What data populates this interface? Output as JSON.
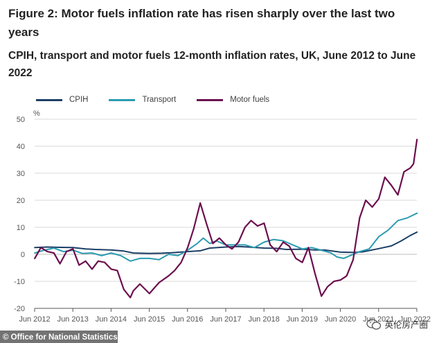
{
  "title": "Figure 2: Motor fuels inflation rate has risen sharply over the last two years",
  "subtitle": "CPIH, transport and motor fuels 12-month inflation rates, UK, June 2012 to June 2022",
  "source": "© Office for National Statistics",
  "watermark": "英伦房产圈",
  "colors": {
    "cpih": "#1c3f66",
    "transport": "#2b9bb1",
    "motor_fuels": "#6b0f4e",
    "grid": "#d9d9d9",
    "axis": "#555555"
  },
  "chart_data": {
    "type": "line",
    "title": "CPIH, transport and motor fuels 12-month inflation rates, UK, June 2012 to June 2022",
    "ylabel": "%",
    "xlabel": "",
    "ylim": [
      -20,
      50
    ],
    "yticks": [
      "50",
      "40",
      "30",
      "20",
      "10",
      "0",
      "-10",
      "-20"
    ],
    "ytick_values": [
      50,
      40,
      30,
      20,
      10,
      0,
      -10,
      -20
    ],
    "xlim": [
      2012.4167,
      2022.4167
    ],
    "xticks": [
      {
        "label": "Jun 2012",
        "x": 2012.4167
      },
      {
        "label": "Jun 2013",
        "x": 2013.4167
      },
      {
        "label": "Jun 2014",
        "x": 2014.4167
      },
      {
        "label": "Jun 2015",
        "x": 2015.4167
      },
      {
        "label": "Jun 2016",
        "x": 2016.4167
      },
      {
        "label": "Jun 2017",
        "x": 2017.4167
      },
      {
        "label": "Jun 2018",
        "x": 2018.4167
      },
      {
        "label": "Jun 2019",
        "x": 2019.4167
      },
      {
        "label": "Jun 2020",
        "x": 2020.4167
      },
      {
        "label": "Jun 2021",
        "x": 2021.4167
      },
      {
        "label": "Jun 2022",
        "x": 2022.4167
      }
    ],
    "legend": [
      "CPIH",
      "Transport",
      "Motor fuels"
    ],
    "grid": true,
    "series": [
      {
        "name": "CPIH",
        "key": "cpih",
        "x": [
          2012.42,
          2012.75,
          2013.0,
          2013.42,
          2013.75,
          2014.0,
          2014.42,
          2014.75,
          2015.0,
          2015.42,
          2015.75,
          2016.0,
          2016.42,
          2016.75,
          2017.0,
          2017.42,
          2017.75,
          2018.0,
          2018.42,
          2018.75,
          2019.0,
          2019.42,
          2019.75,
          2020.0,
          2020.42,
          2020.75,
          2021.0,
          2021.42,
          2021.75,
          2022.0,
          2022.25,
          2022.42
        ],
        "y": [
          2.5,
          2.7,
          2.6,
          2.5,
          2.0,
          1.8,
          1.6,
          1.2,
          0.5,
          0.3,
          0.4,
          0.6,
          1.0,
          1.3,
          2.3,
          2.7,
          2.9,
          2.7,
          2.3,
          2.2,
          1.8,
          1.9,
          1.6,
          1.6,
          0.8,
          0.7,
          0.9,
          2.1,
          3.1,
          4.9,
          7.0,
          8.2
        ]
      },
      {
        "name": "Transport",
        "key": "transport",
        "x": [
          2012.42,
          2012.67,
          2012.92,
          2013.17,
          2013.42,
          2013.67,
          2013.92,
          2014.17,
          2014.42,
          2014.67,
          2014.92,
          2015.17,
          2015.42,
          2015.67,
          2015.92,
          2016.17,
          2016.42,
          2016.67,
          2016.83,
          2017.0,
          2017.17,
          2017.42,
          2017.67,
          2017.92,
          2018.17,
          2018.42,
          2018.67,
          2018.92,
          2019.17,
          2019.42,
          2019.67,
          2019.92,
          2020.17,
          2020.33,
          2020.5,
          2020.67,
          2020.92,
          2021.17,
          2021.42,
          2021.67,
          2021.92,
          2022.17,
          2022.42
        ],
        "y": [
          0.5,
          1.5,
          2.3,
          1.0,
          1.5,
          0.3,
          0.5,
          -0.5,
          0.5,
          -0.5,
          -2.5,
          -1.5,
          -1.5,
          -2.0,
          0.0,
          -0.5,
          1.5,
          4.0,
          6.0,
          4.0,
          5.0,
          3.5,
          3.5,
          3.5,
          2.5,
          4.5,
          5.5,
          5.0,
          3.5,
          2.0,
          2.5,
          1.5,
          0.5,
          -1.0,
          -1.5,
          -0.5,
          1.0,
          2.0,
          6.5,
          9.0,
          12.5,
          13.5,
          15.2
        ]
      },
      {
        "name": "Motor fuels",
        "key": "motor_fuels",
        "x": [
          2012.42,
          2012.58,
          2012.75,
          2012.92,
          2013.08,
          2013.25,
          2013.42,
          2013.58,
          2013.75,
          2013.92,
          2014.08,
          2014.25,
          2014.42,
          2014.58,
          2014.75,
          2014.92,
          2015.0,
          2015.17,
          2015.42,
          2015.67,
          2015.92,
          2016.08,
          2016.25,
          2016.42,
          2016.58,
          2016.75,
          2016.92,
          2017.08,
          2017.25,
          2017.42,
          2017.58,
          2017.75,
          2017.92,
          2018.08,
          2018.25,
          2018.42,
          2018.58,
          2018.75,
          2018.92,
          2019.08,
          2019.25,
          2019.42,
          2019.58,
          2019.75,
          2019.92,
          2020.08,
          2020.25,
          2020.42,
          2020.58,
          2020.75,
          2020.92,
          2021.08,
          2021.25,
          2021.42,
          2021.58,
          2021.75,
          2021.92,
          2022.08,
          2022.25,
          2022.33,
          2022.42
        ],
        "y": [
          -1.5,
          2.5,
          1.0,
          0.5,
          -3.5,
          1.0,
          2.0,
          -4.0,
          -2.5,
          -5.5,
          -2.5,
          -3.0,
          -5.5,
          -6.0,
          -13.0,
          -16.0,
          -13.5,
          -11.0,
          -14.5,
          -10.5,
          -8.0,
          -6.0,
          -3.0,
          2.5,
          9.5,
          19.0,
          11.0,
          4.0,
          6.0,
          3.5,
          2.0,
          4.5,
          10.0,
          12.5,
          10.5,
          11.5,
          3.5,
          1.0,
          4.5,
          3.0,
          -1.5,
          -3.0,
          2.5,
          -7.0,
          -15.5,
          -12.0,
          -10.0,
          -9.5,
          -8.0,
          -2.0,
          13.5,
          20.0,
          17.5,
          20.5,
          28.5,
          25.5,
          22.0,
          30.5,
          32.0,
          33.5,
          42.5
        ]
      }
    ]
  }
}
